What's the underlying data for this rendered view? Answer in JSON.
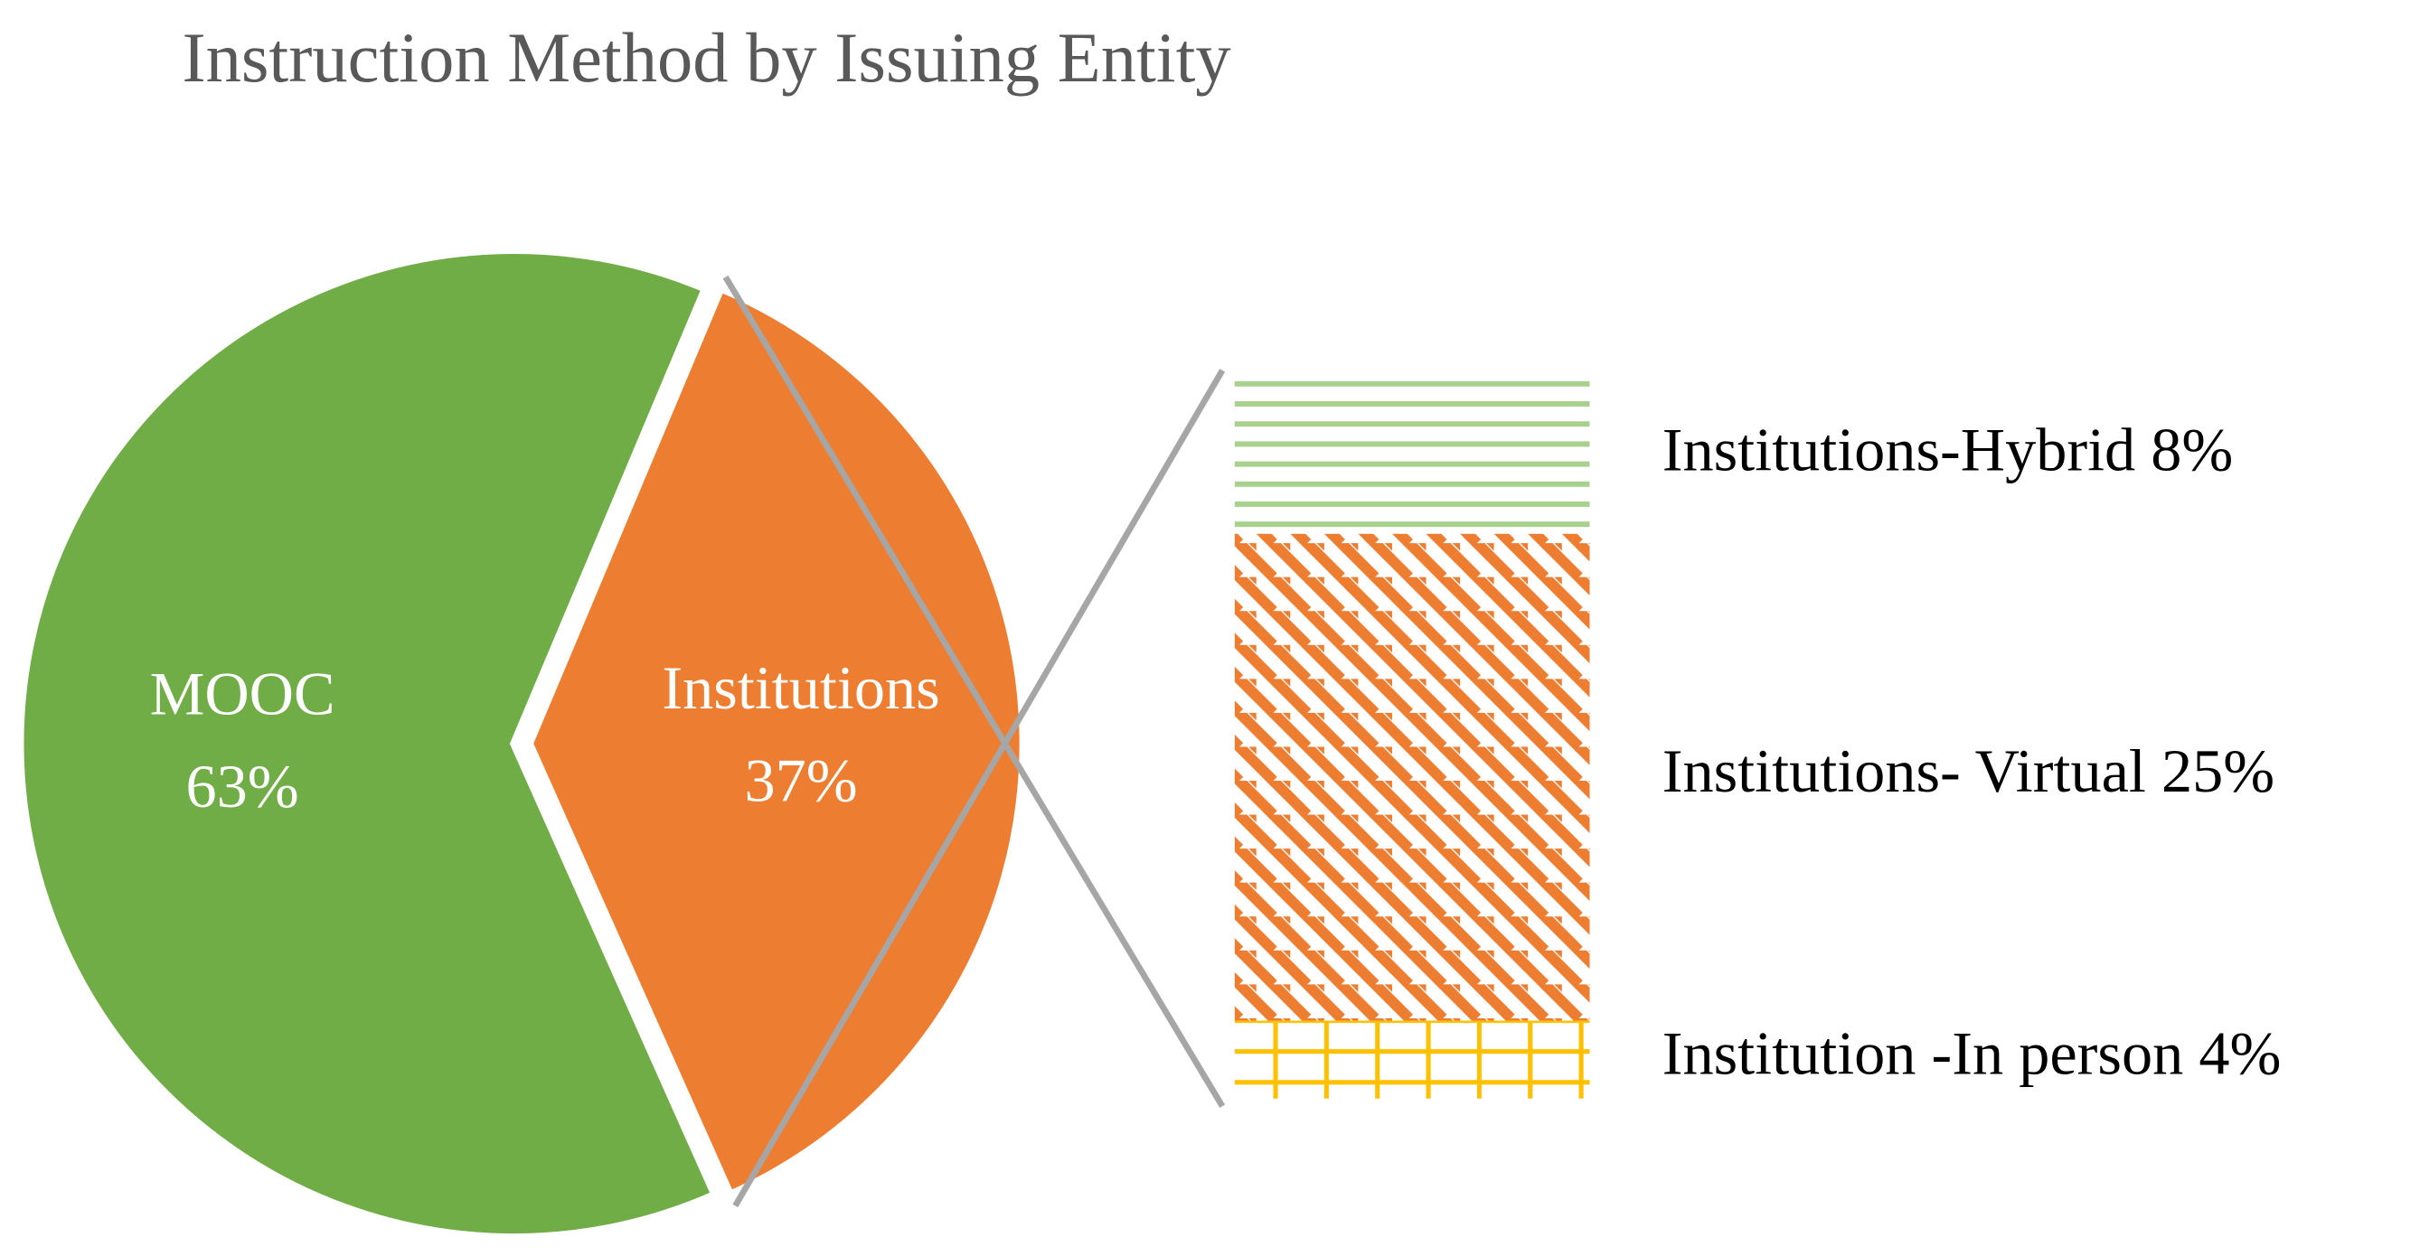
{
  "chart_data": {
    "type": "pie",
    "title": "Instruction Method by Issuing Entity",
    "categories": [
      "MOOC",
      "Institutions"
    ],
    "values": [
      63,
      37
    ],
    "value_labels": [
      "63%",
      "37%"
    ],
    "colors": [
      "#70ad47",
      "#ed7d31"
    ],
    "breakdown": {
      "categories": [
        "Institutions-Hybrid",
        "Institutions- Virtual",
        "Institution -In person"
      ],
      "values": [
        8,
        25,
        4
      ],
      "value_labels": [
        "8%",
        "25%",
        "4%"
      ],
      "colors": [
        "#a9d18e",
        "#ed7d31",
        "#ffc000"
      ]
    }
  }
}
